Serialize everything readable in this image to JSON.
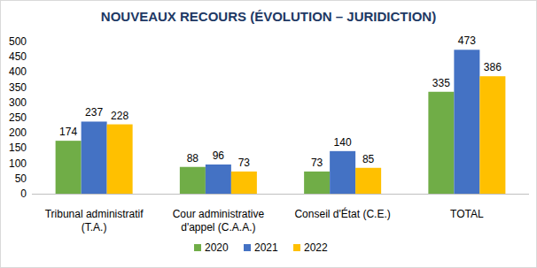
{
  "chart_data": {
    "type": "bar",
    "title": "NOUVEAUX RECOURS (ÉVOLUTION – JURIDICTION)",
    "categories": [
      "Tribunal administratif\n(T.A.)",
      "Cour administrative\nd'appel (C.A.A.)",
      "Conseil d'État (C.E.)",
      "TOTAL"
    ],
    "series": [
      {
        "name": "2020",
        "color": "#70ad47",
        "values": [
          174,
          88,
          73,
          335
        ]
      },
      {
        "name": "2021",
        "color": "#4472c4",
        "values": [
          237,
          96,
          140,
          473
        ]
      },
      {
        "name": "2022",
        "color": "#ffc000",
        "values": [
          228,
          73,
          85,
          386
        ]
      }
    ],
    "ylim": [
      0,
      500
    ],
    "yticks": [
      0,
      50,
      100,
      150,
      200,
      250,
      300,
      350,
      400,
      450,
      500
    ],
    "grid": false,
    "data_labels": true,
    "legend": "bottom"
  }
}
